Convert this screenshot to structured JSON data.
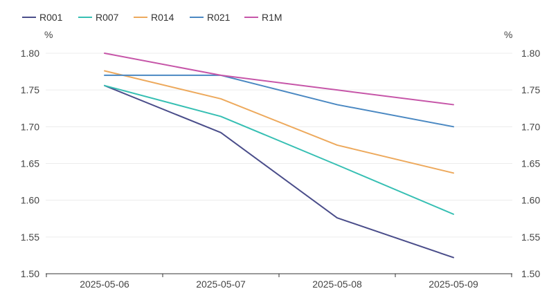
{
  "chart_data": {
    "type": "line",
    "title": "",
    "categories": [
      "2025-05-06",
      "2025-05-07",
      "2025-05-08",
      "2025-05-09"
    ],
    "series": [
      {
        "name": "R001",
        "color": "#4a4d8a",
        "values": [
          1.756,
          1.692,
          1.576,
          1.522
        ]
      },
      {
        "name": "R007",
        "color": "#36bfb3",
        "values": [
          1.756,
          1.714,
          1.648,
          1.581
        ]
      },
      {
        "name": "R014",
        "color": "#eda95c",
        "values": [
          1.776,
          1.738,
          1.675,
          1.637
        ]
      },
      {
        "name": "R021",
        "color": "#4a88c2",
        "values": [
          1.77,
          1.77,
          1.73,
          1.7
        ]
      },
      {
        "name": "R1M",
        "color": "#c655a8",
        "values": [
          1.8,
          1.77,
          1.75,
          1.73
        ]
      }
    ],
    "ylabel_left": "%",
    "ylabel_right": "%",
    "ylim": [
      1.5,
      1.8
    ],
    "yticks": [
      "1.50",
      "1.55",
      "1.60",
      "1.65",
      "1.70",
      "1.75",
      "1.80"
    ],
    "legend_position": "top-left",
    "grid": true
  }
}
